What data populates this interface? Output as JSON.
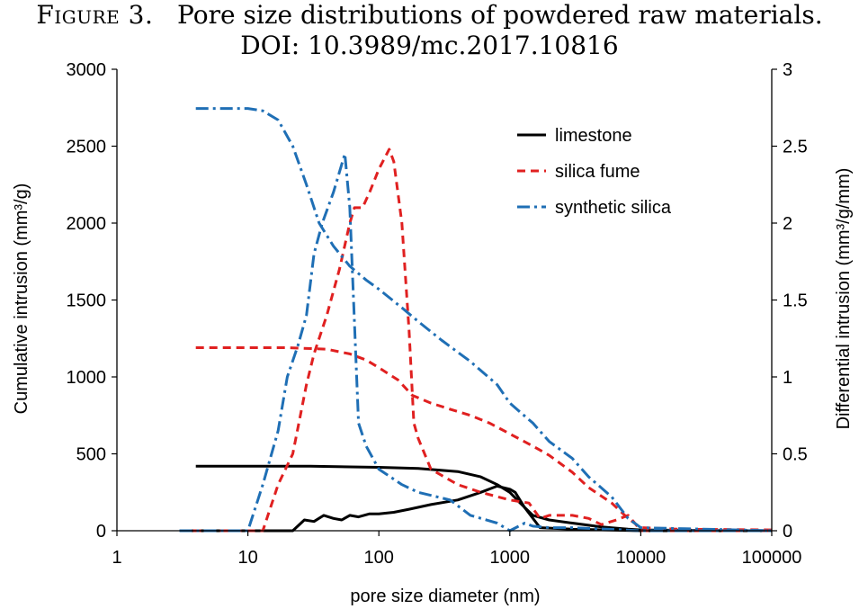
{
  "caption": {
    "figure_label": "Figure 3.",
    "title": "Pore size distributions of powdered raw materials.",
    "doi": "DOI: 10.3989/mc.2017.10816"
  },
  "chart_data": {
    "type": "line",
    "xlabel": "pore size diameter (nm)",
    "ylabel_left": "Cumulative intrusion (mm³/g)",
    "ylabel_right": "Differential intrusion (mm³/g/mm)",
    "x_scale": "log",
    "xlim": [
      1,
      100000
    ],
    "ylim_left": [
      0,
      3000
    ],
    "ylim_right": [
      0,
      3
    ],
    "x_ticks": [
      1,
      10,
      100,
      1000,
      10000,
      100000
    ],
    "x_tick_labels": [
      "1",
      "10",
      "100",
      "1000",
      "10000",
      "100000"
    ],
    "y_left_ticks": [
      0,
      500,
      1000,
      1500,
      2000,
      2500,
      3000
    ],
    "y_left_tick_labels": [
      "0",
      "500",
      "1000",
      "1500",
      "2000",
      "2500",
      "3000"
    ],
    "y_right_ticks": [
      0,
      0.5,
      1,
      1.5,
      2,
      2.5,
      3
    ],
    "y_right_tick_labels": [
      "0",
      "0.5",
      "1",
      "1.5",
      "2",
      "2.5",
      "3"
    ],
    "legend": {
      "position": "top-right",
      "entries": [
        {
          "label": "limestone",
          "color": "#000000",
          "style": "solid"
        },
        {
          "label": "silica fume",
          "color": "#e02020",
          "style": "dashed"
        },
        {
          "label": "synthetic silica",
          "color": "#1f6fb5",
          "style": "dashdot"
        }
      ]
    },
    "series": [
      {
        "name": "limestone",
        "kind": "cumulative",
        "axis": "left",
        "color": "#000000",
        "points": [
          [
            4,
            420
          ],
          [
            10,
            420
          ],
          [
            30,
            420
          ],
          [
            60,
            415
          ],
          [
            100,
            412
          ],
          [
            200,
            405
          ],
          [
            400,
            385
          ],
          [
            600,
            350
          ],
          [
            800,
            300
          ],
          [
            1000,
            250
          ],
          [
            1200,
            180
          ],
          [
            1500,
            100
          ],
          [
            2000,
            70
          ],
          [
            3000,
            50
          ],
          [
            5000,
            25
          ],
          [
            8000,
            10
          ],
          [
            10000,
            5
          ],
          [
            30000,
            2
          ],
          [
            100000,
            0
          ]
        ]
      },
      {
        "name": "limestone",
        "kind": "differential",
        "axis": "right",
        "color": "#000000",
        "points": [
          [
            3,
            0
          ],
          [
            22,
            0
          ],
          [
            27,
            0.07
          ],
          [
            32,
            0.06
          ],
          [
            38,
            0.1
          ],
          [
            45,
            0.08
          ],
          [
            52,
            0.07
          ],
          [
            60,
            0.1
          ],
          [
            70,
            0.09
          ],
          [
            85,
            0.11
          ],
          [
            100,
            0.11
          ],
          [
            130,
            0.12
          ],
          [
            170,
            0.14
          ],
          [
            250,
            0.17
          ],
          [
            400,
            0.2
          ],
          [
            600,
            0.25
          ],
          [
            800,
            0.29
          ],
          [
            1000,
            0.27
          ],
          [
            1100,
            0.25
          ],
          [
            1300,
            0.15
          ],
          [
            1700,
            0.02
          ],
          [
            3000,
            0.01
          ],
          [
            10000,
            0
          ],
          [
            100000,
            0
          ]
        ]
      },
      {
        "name": "silica fume",
        "kind": "cumulative",
        "axis": "left",
        "color": "#e02020",
        "points": [
          [
            4,
            1190
          ],
          [
            10,
            1190
          ],
          [
            20,
            1190
          ],
          [
            40,
            1180
          ],
          [
            60,
            1150
          ],
          [
            80,
            1110
          ],
          [
            100,
            1060
          ],
          [
            140,
            980
          ],
          [
            180,
            880
          ],
          [
            250,
            830
          ],
          [
            350,
            790
          ],
          [
            500,
            750
          ],
          [
            700,
            700
          ],
          [
            1000,
            630
          ],
          [
            1500,
            550
          ],
          [
            2000,
            490
          ],
          [
            3000,
            380
          ],
          [
            4000,
            280
          ],
          [
            6000,
            180
          ],
          [
            8000,
            80
          ],
          [
            10000,
            20
          ],
          [
            20000,
            10
          ],
          [
            100000,
            5
          ]
        ]
      },
      {
        "name": "silica fume",
        "kind": "differential",
        "axis": "right",
        "color": "#e02020",
        "points": [
          [
            3,
            0
          ],
          [
            13,
            0
          ],
          [
            17,
            0.3
          ],
          [
            22,
            0.5
          ],
          [
            28,
            0.95
          ],
          [
            32,
            1.15
          ],
          [
            40,
            1.4
          ],
          [
            50,
            1.7
          ],
          [
            60,
            2.0
          ],
          [
            65,
            2.1
          ],
          [
            75,
            2.1
          ],
          [
            85,
            2.2
          ],
          [
            100,
            2.35
          ],
          [
            120,
            2.48
          ],
          [
            130,
            2.4
          ],
          [
            150,
            2.0
          ],
          [
            170,
            1.3
          ],
          [
            185,
            0.7
          ],
          [
            200,
            0.6
          ],
          [
            250,
            0.4
          ],
          [
            400,
            0.3
          ],
          [
            600,
            0.25
          ],
          [
            1000,
            0.2
          ],
          [
            1400,
            0.18
          ],
          [
            1700,
            0.08
          ],
          [
            2000,
            0.1
          ],
          [
            3000,
            0.1
          ],
          [
            4000,
            0.08
          ],
          [
            5000,
            0.04
          ],
          [
            6500,
            0.07
          ],
          [
            8000,
            0.1
          ],
          [
            9000,
            0.05
          ],
          [
            10000,
            0
          ],
          [
            100000,
            0
          ]
        ]
      },
      {
        "name": "synthetic silica",
        "kind": "cumulative",
        "axis": "left",
        "color": "#1f6fb5",
        "points": [
          [
            4,
            2745
          ],
          [
            10,
            2745
          ],
          [
            13,
            2730
          ],
          [
            17,
            2670
          ],
          [
            22,
            2500
          ],
          [
            28,
            2250
          ],
          [
            35,
            2000
          ],
          [
            45,
            1850
          ],
          [
            60,
            1720
          ],
          [
            80,
            1630
          ],
          [
            100,
            1570
          ],
          [
            150,
            1450
          ],
          [
            200,
            1360
          ],
          [
            300,
            1240
          ],
          [
            500,
            1100
          ],
          [
            800,
            950
          ],
          [
            1000,
            830
          ],
          [
            1500,
            700
          ],
          [
            2000,
            580
          ],
          [
            3000,
            470
          ],
          [
            4000,
            350
          ],
          [
            6000,
            220
          ],
          [
            8000,
            80
          ],
          [
            10000,
            20
          ],
          [
            100000,
            0
          ]
        ]
      },
      {
        "name": "synthetic silica",
        "kind": "differential",
        "axis": "right",
        "color": "#1f6fb5",
        "points": [
          [
            3,
            0
          ],
          [
            10,
            0
          ],
          [
            13,
            0.3
          ],
          [
            17,
            0.65
          ],
          [
            20,
            1.0
          ],
          [
            24,
            1.2
          ],
          [
            28,
            1.4
          ],
          [
            32,
            1.8
          ],
          [
            37,
            2.0
          ],
          [
            45,
            2.2
          ],
          [
            55,
            2.45
          ],
          [
            60,
            2.1
          ],
          [
            70,
            0.7
          ],
          [
            80,
            0.55
          ],
          [
            100,
            0.4
          ],
          [
            150,
            0.3
          ],
          [
            200,
            0.25
          ],
          [
            350,
            0.2
          ],
          [
            500,
            0.1
          ],
          [
            800,
            0.05
          ],
          [
            1000,
            0.0
          ],
          [
            1300,
            0.05
          ],
          [
            1500,
            0.03
          ],
          [
            2000,
            0.02
          ],
          [
            3000,
            0.02
          ],
          [
            10000,
            0
          ],
          [
            100000,
            0
          ]
        ]
      }
    ]
  }
}
